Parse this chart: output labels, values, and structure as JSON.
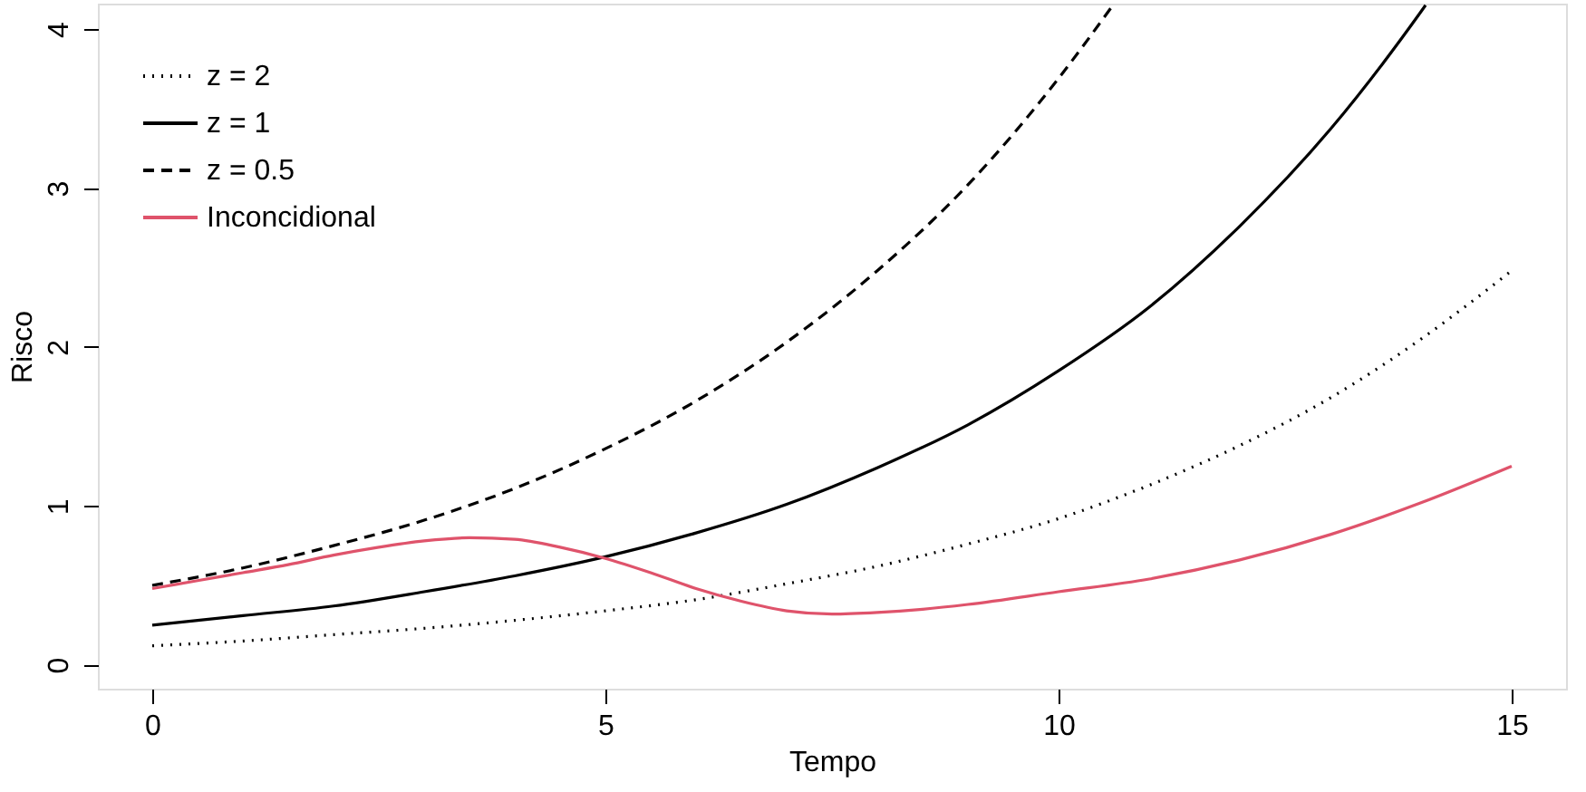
{
  "chart_data": {
    "type": "line",
    "xlabel": "Tempo",
    "ylabel": "Risco",
    "xlim": [
      -0.6,
      15.6
    ],
    "ylim": [
      -0.15,
      4.16
    ],
    "xticks": [
      0,
      5,
      10,
      15
    ],
    "yticks": [
      0,
      1,
      2,
      3,
      4
    ],
    "grid": false,
    "legend": "top left",
    "marker": "none",
    "series": [
      {
        "name": "z = 2",
        "color": "#000000",
        "line_style": "dotted",
        "x": [
          0,
          1,
          2,
          3,
          4,
          5,
          6,
          7,
          8,
          9,
          10,
          11,
          12,
          13,
          14,
          15
        ],
        "values": [
          0.12,
          0.15,
          0.19,
          0.23,
          0.28,
          0.34,
          0.41,
          0.51,
          0.62,
          0.76,
          0.92,
          1.13,
          1.38,
          1.68,
          2.05,
          2.48
        ]
      },
      {
        "name": "z = 1",
        "color": "#000000",
        "line_style": "solid",
        "x": [
          0,
          1,
          2,
          3,
          4,
          5,
          6,
          7,
          8,
          9,
          10,
          11,
          12,
          13,
          14,
          14.05
        ],
        "values": [
          0.25,
          0.31,
          0.37,
          0.46,
          0.56,
          0.68,
          0.83,
          1.01,
          1.24,
          1.51,
          1.85,
          2.25,
          2.76,
          3.37,
          4.11,
          4.15
        ]
      },
      {
        "name": "z = 0.5",
        "color": "#000000",
        "line_style": "dashed",
        "x": [
          0,
          1,
          2,
          3,
          4,
          5,
          6,
          7,
          8,
          9,
          10,
          10.6
        ],
        "values": [
          0.5,
          0.61,
          0.75,
          0.91,
          1.11,
          1.36,
          1.66,
          2.03,
          2.48,
          3.02,
          3.69,
          4.15
        ]
      },
      {
        "name": "Inconcidional",
        "color": "#df536b",
        "line_style": "solid",
        "x": [
          0,
          0.5,
          1,
          1.5,
          2,
          2.5,
          3,
          3.5,
          4,
          4.5,
          5,
          5.5,
          6,
          6.5,
          7,
          7.5,
          8,
          8.5,
          9,
          10,
          11,
          12,
          13,
          14,
          15
        ],
        "values": [
          0.48,
          0.53,
          0.58,
          0.63,
          0.69,
          0.74,
          0.78,
          0.8,
          0.79,
          0.74,
          0.67,
          0.58,
          0.48,
          0.4,
          0.34,
          0.32,
          0.33,
          0.35,
          0.38,
          0.46,
          0.54,
          0.66,
          0.82,
          1.02,
          1.25
        ]
      }
    ]
  }
}
